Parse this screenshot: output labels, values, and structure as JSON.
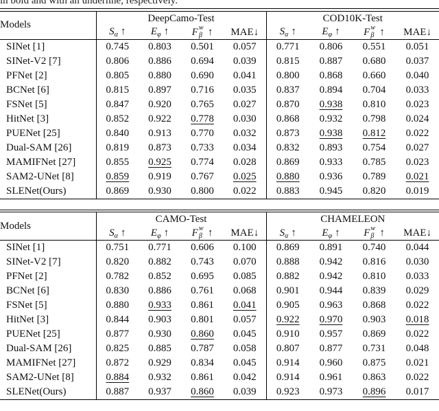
{
  "caption_fragment": "in bold and with an underline, respectively.",
  "models_header": "Models",
  "metrics": [
    {
      "base": "S",
      "sub": "α",
      "sup": "",
      "arrow": "↑"
    },
    {
      "base": "E",
      "sub": "φ",
      "sup": "",
      "arrow": "↑"
    },
    {
      "base": "F",
      "sub": "β",
      "sup": "w",
      "arrow": "↑"
    },
    {
      "base": "MAE",
      "sub": "",
      "sup": "",
      "arrow": "↓"
    }
  ],
  "tables": [
    {
      "groups": [
        "DeepCamo-Test",
        "COD10K-Test"
      ],
      "rows": [
        {
          "model": "SINet [1]",
          "bold": false,
          "cells": [
            [
              "0.745",
              "n"
            ],
            [
              "0.803",
              "n"
            ],
            [
              "0.501",
              "n"
            ],
            [
              "0.057",
              "n"
            ],
            [
              "0.771",
              "n"
            ],
            [
              "0.806",
              "n"
            ],
            [
              "0.551",
              "n"
            ],
            [
              "0.051",
              "n"
            ]
          ]
        },
        {
          "model": "SINet-V2 [7]",
          "bold": false,
          "cells": [
            [
              "0.806",
              "n"
            ],
            [
              "0.886",
              "n"
            ],
            [
              "0.694",
              "n"
            ],
            [
              "0.039",
              "n"
            ],
            [
              "0.815",
              "n"
            ],
            [
              "0.887",
              "n"
            ],
            [
              "0.680",
              "n"
            ],
            [
              "0.037",
              "n"
            ]
          ]
        },
        {
          "model": "PFNet [2]",
          "bold": false,
          "cells": [
            [
              "0.805",
              "n"
            ],
            [
              "0.880",
              "n"
            ],
            [
              "0.690",
              "n"
            ],
            [
              "0.041",
              "n"
            ],
            [
              "0.800",
              "n"
            ],
            [
              "0.868",
              "n"
            ],
            [
              "0.660",
              "n"
            ],
            [
              "0.040",
              "n"
            ]
          ]
        },
        {
          "model": "BCNet [6]",
          "bold": false,
          "cells": [
            [
              "0.815",
              "n"
            ],
            [
              "0.897",
              "n"
            ],
            [
              "0.716",
              "n"
            ],
            [
              "0.035",
              "n"
            ],
            [
              "0.837",
              "n"
            ],
            [
              "0.894",
              "n"
            ],
            [
              "0.704",
              "n"
            ],
            [
              "0.033",
              "n"
            ]
          ]
        },
        {
          "model": "FSNet [5]",
          "bold": false,
          "cells": [
            [
              "0.847",
              "n"
            ],
            [
              "0.920",
              "n"
            ],
            [
              "0.765",
              "n"
            ],
            [
              "0.027",
              "n"
            ],
            [
              "0.870",
              "n"
            ],
            [
              "0.938",
              "u"
            ],
            [
              "0.810",
              "n"
            ],
            [
              "0.023",
              "n"
            ]
          ]
        },
        {
          "model": "HitNet [3]",
          "bold": false,
          "cells": [
            [
              "0.852",
              "n"
            ],
            [
              "0.922",
              "n"
            ],
            [
              "0.778",
              "u"
            ],
            [
              "0.030",
              "n"
            ],
            [
              "0.868",
              "n"
            ],
            [
              "0.932",
              "n"
            ],
            [
              "0.798",
              "n"
            ],
            [
              "0.024",
              "n"
            ]
          ]
        },
        {
          "model": "PUENet [25]",
          "bold": false,
          "cells": [
            [
              "0.840",
              "n"
            ],
            [
              "0.913",
              "n"
            ],
            [
              "0.770",
              "n"
            ],
            [
              "0.032",
              "n"
            ],
            [
              "0.873",
              "n"
            ],
            [
              "0.938",
              "u"
            ],
            [
              "0.812",
              "u"
            ],
            [
              "0.022",
              "n"
            ]
          ]
        },
        {
          "model": "Dual-SAM [26]",
          "bold": false,
          "cells": [
            [
              "0.819",
              "n"
            ],
            [
              "0.873",
              "n"
            ],
            [
              "0.733",
              "n"
            ],
            [
              "0.034",
              "n"
            ],
            [
              "0.832",
              "n"
            ],
            [
              "0.893",
              "n"
            ],
            [
              "0.754",
              "n"
            ],
            [
              "0.027",
              "n"
            ]
          ]
        },
        {
          "model": "MAMIFNet [27]",
          "bold": false,
          "cells": [
            [
              "0.855",
              "n"
            ],
            [
              "0.925",
              "u"
            ],
            [
              "0.774",
              "n"
            ],
            [
              "0.028",
              "n"
            ],
            [
              "0.869",
              "n"
            ],
            [
              "0.933",
              "n"
            ],
            [
              "0.785",
              "n"
            ],
            [
              "0.023",
              "n"
            ]
          ]
        },
        {
          "model": "SAM2-UNet [8]",
          "bold": false,
          "cells": [
            [
              "0.859",
              "u"
            ],
            [
              "0.919",
              "n"
            ],
            [
              "0.767",
              "n"
            ],
            [
              "0.025",
              "u"
            ],
            [
              "0.880",
              "u"
            ],
            [
              "0.936",
              "n"
            ],
            [
              "0.789",
              "n"
            ],
            [
              "0.021",
              "u"
            ]
          ]
        },
        {
          "model": "SLENet(Ours)",
          "bold": true,
          "cells": [
            [
              "0.869",
              "b"
            ],
            [
              "0.930",
              "b"
            ],
            [
              "0.800",
              "b"
            ],
            [
              "0.022",
              "b"
            ],
            [
              "0.883",
              "b"
            ],
            [
              "0.945",
              "b"
            ],
            [
              "0.820",
              "b"
            ],
            [
              "0.019",
              "b"
            ]
          ]
        }
      ]
    },
    {
      "groups": [
        "CAMO-Test",
        "CHAMELEON"
      ],
      "rows": [
        {
          "model": "SINet [1]",
          "bold": false,
          "cells": [
            [
              "0.751",
              "n"
            ],
            [
              "0.771",
              "n"
            ],
            [
              "0.606",
              "n"
            ],
            [
              "0.100",
              "n"
            ],
            [
              "0.869",
              "n"
            ],
            [
              "0.891",
              "n"
            ],
            [
              "0.740",
              "n"
            ],
            [
              "0.044",
              "n"
            ]
          ]
        },
        {
          "model": "SINet-V2 [7]",
          "bold": false,
          "cells": [
            [
              "0.820",
              "n"
            ],
            [
              "0.882",
              "n"
            ],
            [
              "0.743",
              "n"
            ],
            [
              "0.070",
              "n"
            ],
            [
              "0.888",
              "n"
            ],
            [
              "0.942",
              "n"
            ],
            [
              "0.816",
              "n"
            ],
            [
              "0.030",
              "n"
            ]
          ]
        },
        {
          "model": "PFNet [2]",
          "bold": false,
          "cells": [
            [
              "0.782",
              "n"
            ],
            [
              "0.852",
              "n"
            ],
            [
              "0.695",
              "n"
            ],
            [
              "0.085",
              "n"
            ],
            [
              "0.882",
              "n"
            ],
            [
              "0.942",
              "n"
            ],
            [
              "0.810",
              "n"
            ],
            [
              "0.033",
              "n"
            ]
          ]
        },
        {
          "model": "BCNet [6]",
          "bold": false,
          "cells": [
            [
              "0.830",
              "n"
            ],
            [
              "0.886",
              "n"
            ],
            [
              "0.761",
              "n"
            ],
            [
              "0.068",
              "n"
            ],
            [
              "0.901",
              "n"
            ],
            [
              "0.944",
              "n"
            ],
            [
              "0.839",
              "n"
            ],
            [
              "0.029",
              "n"
            ]
          ]
        },
        {
          "model": "FSNet [5]",
          "bold": false,
          "cells": [
            [
              "0.880",
              "n"
            ],
            [
              "0.933",
              "u"
            ],
            [
              "0.861",
              "b"
            ],
            [
              "0.041",
              "u"
            ],
            [
              "0.905",
              "n"
            ],
            [
              "0.963",
              "n"
            ],
            [
              "0.868",
              "n"
            ],
            [
              "0.022",
              "n"
            ]
          ]
        },
        {
          "model": "HitNet [3]",
          "bold": false,
          "cells": [
            [
              "0.844",
              "n"
            ],
            [
              "0.903",
              "n"
            ],
            [
              "0.801",
              "n"
            ],
            [
              "0.057",
              "n"
            ],
            [
              "0.922",
              "u"
            ],
            [
              "0.970",
              "u"
            ],
            [
              "0.903",
              "b"
            ],
            [
              "0.018",
              "u"
            ]
          ]
        },
        {
          "model": "PUENet [25]",
          "bold": false,
          "cells": [
            [
              "0.877",
              "n"
            ],
            [
              "0.930",
              "n"
            ],
            [
              "0.860",
              "u"
            ],
            [
              "0.045",
              "n"
            ],
            [
              "0.910",
              "n"
            ],
            [
              "0.957",
              "n"
            ],
            [
              "0.869",
              "n"
            ],
            [
              "0.022",
              "n"
            ]
          ]
        },
        {
          "model": "Dual-SAM [26]",
          "bold": false,
          "cells": [
            [
              "0.825",
              "n"
            ],
            [
              "0.885",
              "n"
            ],
            [
              "0.787",
              "n"
            ],
            [
              "0.058",
              "n"
            ],
            [
              "0.807",
              "n"
            ],
            [
              "0.877",
              "n"
            ],
            [
              "0.731",
              "n"
            ],
            [
              "0.048",
              "n"
            ]
          ]
        },
        {
          "model": "MAMIFNet [27]",
          "bold": false,
          "cells": [
            [
              "0.872",
              "n"
            ],
            [
              "0.929",
              "n"
            ],
            [
              "0.834",
              "n"
            ],
            [
              "0.045",
              "n"
            ],
            [
              "0.914",
              "n"
            ],
            [
              "0.960",
              "n"
            ],
            [
              "0.875",
              "n"
            ],
            [
              "0.021",
              "n"
            ]
          ]
        },
        {
          "model": "SAM2-UNet [8]",
          "bold": false,
          "cells": [
            [
              "0.884",
              "u"
            ],
            [
              "0.932",
              "n"
            ],
            [
              "0.861",
              "b"
            ],
            [
              "0.042",
              "n"
            ],
            [
              "0.914",
              "n"
            ],
            [
              "0.961",
              "n"
            ],
            [
              "0.863",
              "n"
            ],
            [
              "0.022",
              "n"
            ]
          ]
        },
        {
          "model": "SLENet(Ours)",
          "bold": true,
          "cells": [
            [
              "0.887",
              "b"
            ],
            [
              "0.937",
              "b"
            ],
            [
              "0.860",
              "u"
            ],
            [
              "0.039",
              "b"
            ],
            [
              "0.923",
              "b"
            ],
            [
              "0.973",
              "b"
            ],
            [
              "0.896",
              "u"
            ],
            [
              "0.017",
              "b"
            ]
          ]
        }
      ]
    }
  ]
}
